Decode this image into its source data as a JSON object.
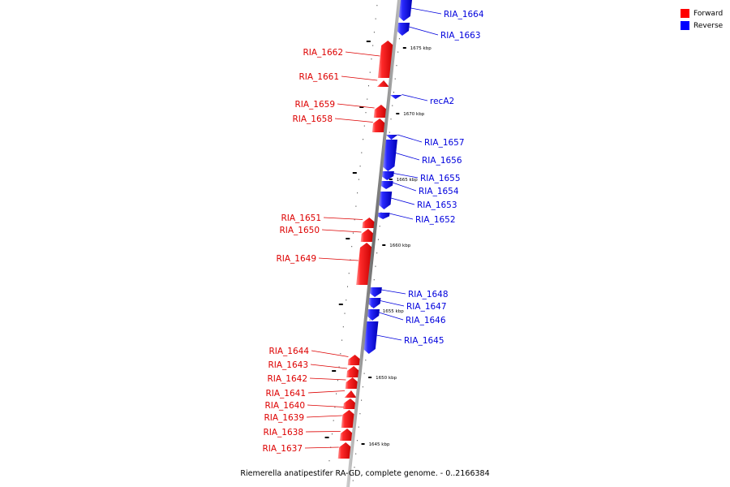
{
  "caption": "Riemerella anatipestifer RA-GD, complete genome. - 0..2166384",
  "legend": [
    {
      "label": "Forward",
      "color": "#ff0000"
    },
    {
      "label": "Reverse",
      "color": "#0000ff"
    }
  ],
  "ticks": [
    {
      "label": "1675 kbp"
    },
    {
      "label": "1670 kbp"
    },
    {
      "label": "1665 kbp"
    },
    {
      "label": "1660 kbp"
    },
    {
      "label": "1655 kbp"
    },
    {
      "label": "1650 kbp"
    },
    {
      "label": "1645 kbp"
    }
  ],
  "genes": [
    {
      "name": "RIA_1664",
      "strand": "reverse"
    },
    {
      "name": "RIA_1663",
      "strand": "reverse"
    },
    {
      "name": "RIA_1662",
      "strand": "forward"
    },
    {
      "name": "RIA_1661",
      "strand": "forward"
    },
    {
      "name": "recA2",
      "strand": "reverse"
    },
    {
      "name": "RIA_1659",
      "strand": "forward"
    },
    {
      "name": "RIA_1658",
      "strand": "forward"
    },
    {
      "name": "RIA_1657",
      "strand": "reverse"
    },
    {
      "name": "RIA_1656",
      "strand": "reverse"
    },
    {
      "name": "RIA_1655",
      "strand": "reverse"
    },
    {
      "name": "RIA_1654",
      "strand": "reverse"
    },
    {
      "name": "RIA_1653",
      "strand": "reverse"
    },
    {
      "name": "RIA_1652",
      "strand": "reverse"
    },
    {
      "name": "RIA_1651",
      "strand": "forward"
    },
    {
      "name": "RIA_1650",
      "strand": "forward"
    },
    {
      "name": "RIA_1649",
      "strand": "forward"
    },
    {
      "name": "RIA_1648",
      "strand": "reverse"
    },
    {
      "name": "RIA_1647",
      "strand": "reverse"
    },
    {
      "name": "RIA_1646",
      "strand": "reverse"
    },
    {
      "name": "RIA_1645",
      "strand": "reverse"
    },
    {
      "name": "RIA_1644",
      "strand": "forward"
    },
    {
      "name": "RIA_1643",
      "strand": "forward"
    },
    {
      "name": "RIA_1642",
      "strand": "forward"
    },
    {
      "name": "RIA_1641",
      "strand": "forward"
    },
    {
      "name": "RIA_1640",
      "strand": "forward"
    },
    {
      "name": "RIA_1639",
      "strand": "forward"
    },
    {
      "name": "RIA_1638",
      "strand": "forward"
    },
    {
      "name": "RIA_1637",
      "strand": "forward"
    }
  ]
}
